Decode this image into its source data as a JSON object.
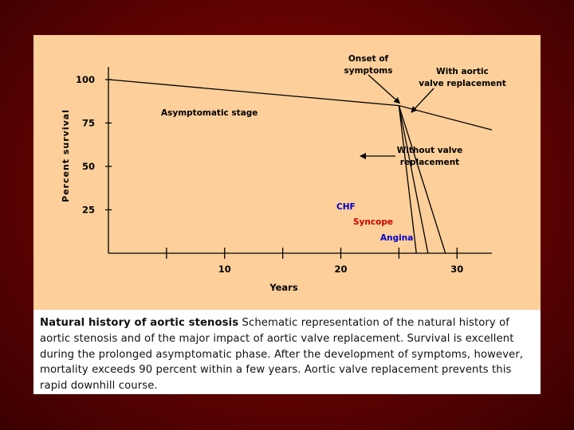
{
  "chart_data": {
    "type": "line",
    "xlabel": "Years",
    "ylabel": "Percent survival",
    "x_ticks": [
      10,
      20,
      30
    ],
    "y_ticks": [
      25,
      50,
      75,
      100
    ],
    "xlim": [
      0,
      33
    ],
    "ylim": [
      0,
      105
    ],
    "grid": false,
    "series": [
      {
        "name": "With aortic valve replacement",
        "x": [
          0,
          25,
          33
        ],
        "y": [
          100,
          85,
          71
        ],
        "color": "#000000"
      },
      {
        "name": "CHF",
        "x": [
          25,
          26.5
        ],
        "y": [
          85,
          0
        ],
        "color": "#000000"
      },
      {
        "name": "Syncope",
        "x": [
          25,
          27.5
        ],
        "y": [
          85,
          0
        ],
        "color": "#000000"
      },
      {
        "name": "Angina",
        "x": [
          25,
          29
        ],
        "y": [
          85,
          0
        ],
        "color": "#000000"
      }
    ],
    "annotations": [
      {
        "text": "Asymptomatic stage",
        "color": "#000000"
      },
      {
        "text": "Onset of symptoms",
        "color": "#000000"
      },
      {
        "text": "With aortic valve replacement",
        "color": "#000000"
      },
      {
        "text": "Without valve replacement",
        "color": "#000000"
      },
      {
        "text": "CHF",
        "color": "#0000cc"
      },
      {
        "text": "Syncope",
        "color": "#cc0000"
      },
      {
        "text": "Angina",
        "color": "#0000cc"
      }
    ]
  },
  "caption": {
    "title": "Natural history of aortic stenosis",
    "text": " Schematic representation of the natural history of aortic stenosis and of the major impact of aortic valve replacement. Survival is excellent during the prolonged asymptomatic phase. After the development of symptoms, however, mortality exceeds 90 percent within a few years. Aortic valve replacement prevents this rapid downhill course."
  }
}
